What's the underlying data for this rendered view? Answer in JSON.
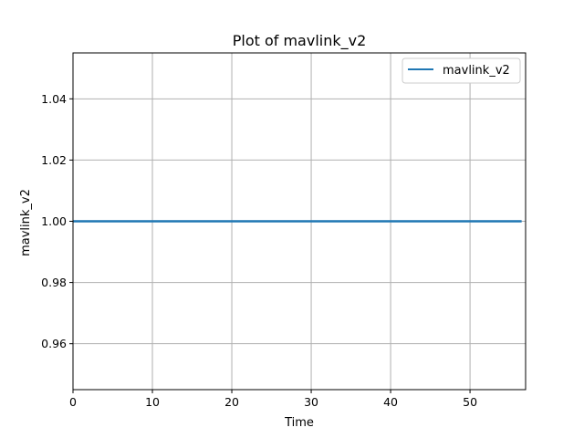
{
  "chart_data": {
    "type": "line",
    "title": "Plot of mavlink_v2",
    "xlabel": "Time",
    "ylabel": "mavlink_v2",
    "xlim": [
      0,
      57
    ],
    "ylim": [
      0.945,
      1.055
    ],
    "xticks": [
      0,
      10,
      20,
      30,
      40,
      50
    ],
    "xtick_labels": [
      "0",
      "10",
      "20",
      "30",
      "40",
      "50"
    ],
    "yticks": [
      0.96,
      0.98,
      1.0,
      1.02,
      1.04
    ],
    "ytick_labels": [
      "0.96",
      "0.98",
      "1.00",
      "1.02",
      "1.04"
    ],
    "grid": true,
    "legend": {
      "position": "top-right",
      "entries": [
        "mavlink_v2"
      ]
    },
    "series": [
      {
        "name": "mavlink_v2",
        "color": "#1f77b4",
        "x": [
          0,
          56.5
        ],
        "y": [
          1.0,
          1.0
        ]
      }
    ]
  }
}
